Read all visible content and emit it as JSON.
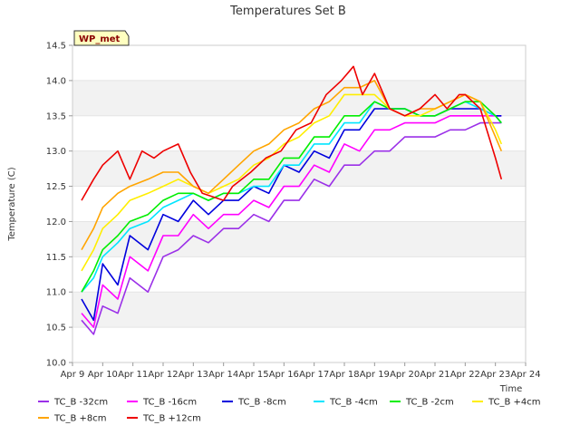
{
  "chart_data": {
    "type": "line",
    "title": "Temperatures Set B",
    "xlabel": "Time",
    "ylabel": "Temperature (C)",
    "badge": "WP_met",
    "xlim": [
      0,
      15
    ],
    "ylim": [
      10.0,
      14.5
    ],
    "x_ticks": [
      "Apr 9",
      "Apr 10",
      "Apr 11",
      "Apr 12",
      "Apr 13",
      "Apr 14",
      "Apr 15",
      "Apr 16",
      "Apr 17",
      "Apr 18",
      "Apr 19",
      "Apr 20",
      "Apr 21",
      "Apr 22",
      "Apr 23",
      "Apr 24"
    ],
    "y_ticks": [
      "10.0",
      "10.5",
      "11.0",
      "11.5",
      "12.0",
      "12.5",
      "13.0",
      "13.5",
      "14.0",
      "14.5"
    ],
    "y_tick_values": [
      10.0,
      10.5,
      11.0,
      11.5,
      12.0,
      12.5,
      13.0,
      13.5,
      14.0,
      14.5
    ],
    "grid": "horizontal bands",
    "band_color": "#f2f2f2",
    "legend_position": "bottom",
    "x_note": "x values are days after Apr 9",
    "series": [
      {
        "name": "TC_B -32cm",
        "color": "#9b30e8",
        "x": [
          0.3,
          0.7,
          1.0,
          1.5,
          1.9,
          2.5,
          3.0,
          3.5,
          4.0,
          4.5,
          5.0,
          5.5,
          6.0,
          6.5,
          7.0,
          7.5,
          8.0,
          8.5,
          9.0,
          9.5,
          10.0,
          10.5,
          11.0,
          11.5,
          12.0,
          12.5,
          13.0,
          13.5,
          14.0,
          14.2
        ],
        "y": [
          10.6,
          10.4,
          10.8,
          10.7,
          11.2,
          11.0,
          11.5,
          11.6,
          11.8,
          11.7,
          11.9,
          11.9,
          12.1,
          12.0,
          12.3,
          12.3,
          12.6,
          12.5,
          12.8,
          12.8,
          13.0,
          13.0,
          13.2,
          13.2,
          13.2,
          13.3,
          13.3,
          13.4,
          13.4,
          13.4
        ]
      },
      {
        "name": "TC_B -16cm",
        "color": "#ff00ff",
        "x": [
          0.3,
          0.7,
          1.0,
          1.5,
          1.9,
          2.5,
          3.0,
          3.5,
          4.0,
          4.5,
          5.0,
          5.5,
          6.0,
          6.5,
          7.0,
          7.5,
          8.0,
          8.5,
          9.0,
          9.5,
          10.0,
          10.5,
          11.0,
          11.5,
          12.0,
          12.5,
          13.0,
          13.5,
          14.0,
          14.2
        ],
        "y": [
          10.7,
          10.5,
          11.1,
          10.9,
          11.5,
          11.3,
          11.8,
          11.8,
          12.1,
          11.9,
          12.1,
          12.1,
          12.3,
          12.2,
          12.5,
          12.5,
          12.8,
          12.7,
          13.1,
          13.0,
          13.3,
          13.3,
          13.4,
          13.4,
          13.4,
          13.5,
          13.5,
          13.5,
          13.5,
          13.5
        ]
      },
      {
        "name": "TC_B -8cm",
        "color": "#0000dd",
        "x": [
          0.3,
          0.7,
          1.0,
          1.5,
          1.9,
          2.5,
          3.0,
          3.5,
          4.0,
          4.5,
          5.0,
          5.5,
          6.0,
          6.5,
          7.0,
          7.5,
          8.0,
          8.5,
          9.0,
          9.5,
          10.0,
          10.5,
          11.0,
          11.5,
          12.0,
          12.5,
          13.0,
          13.5,
          14.0,
          14.2
        ],
        "y": [
          10.9,
          10.6,
          11.4,
          11.1,
          11.8,
          11.6,
          12.1,
          12.0,
          12.3,
          12.1,
          12.3,
          12.3,
          12.5,
          12.4,
          12.8,
          12.7,
          13.0,
          12.9,
          13.3,
          13.3,
          13.6,
          13.6,
          13.6,
          13.5,
          13.5,
          13.6,
          13.6,
          13.6,
          13.5,
          13.5
        ]
      },
      {
        "name": "TC_B -4cm",
        "color": "#00e5ff",
        "x": [
          0.3,
          0.7,
          1.0,
          1.5,
          1.9,
          2.5,
          3.0,
          3.5,
          4.0,
          4.5,
          5.0,
          5.5,
          6.0,
          6.5,
          7.0,
          7.5,
          8.0,
          8.5,
          9.0,
          9.5,
          10.0,
          10.5,
          11.0,
          11.5,
          12.0,
          12.5,
          13.0,
          13.5,
          14.0,
          14.2
        ],
        "y": [
          11.0,
          11.2,
          11.5,
          11.7,
          11.9,
          12.0,
          12.2,
          12.3,
          12.4,
          12.3,
          12.4,
          12.4,
          12.5,
          12.5,
          12.8,
          12.8,
          13.1,
          13.1,
          13.4,
          13.4,
          13.7,
          13.6,
          13.6,
          13.5,
          13.5,
          13.6,
          13.7,
          13.6,
          13.5,
          13.4
        ]
      },
      {
        "name": "TC_B -2cm",
        "color": "#00ee00",
        "x": [
          0.3,
          0.7,
          1.0,
          1.5,
          1.9,
          2.5,
          3.0,
          3.5,
          4.0,
          4.5,
          5.0,
          5.5,
          6.0,
          6.5,
          7.0,
          7.5,
          8.0,
          8.5,
          9.0,
          9.5,
          10.0,
          10.5,
          11.0,
          11.5,
          12.0,
          12.5,
          13.0,
          13.5,
          14.0,
          14.2
        ],
        "y": [
          11.0,
          11.3,
          11.6,
          11.8,
          12.0,
          12.1,
          12.3,
          12.4,
          12.4,
          12.3,
          12.4,
          12.4,
          12.6,
          12.6,
          12.9,
          12.9,
          13.2,
          13.2,
          13.5,
          13.5,
          13.7,
          13.6,
          13.6,
          13.5,
          13.5,
          13.6,
          13.7,
          13.7,
          13.5,
          13.4
        ]
      },
      {
        "name": "TC_B +4cm",
        "color": "#ffee00",
        "x": [
          0.3,
          0.7,
          1.0,
          1.5,
          1.9,
          2.5,
          3.0,
          3.5,
          4.0,
          4.5,
          5.0,
          5.5,
          6.0,
          6.5,
          7.0,
          7.5,
          8.0,
          8.5,
          9.0,
          9.5,
          10.0,
          10.5,
          11.0,
          11.5,
          12.0,
          12.5,
          13.0,
          13.5,
          14.0,
          14.2
        ],
        "y": [
          11.3,
          11.6,
          11.9,
          12.1,
          12.3,
          12.4,
          12.5,
          12.6,
          12.5,
          12.4,
          12.5,
          12.6,
          12.8,
          12.9,
          13.1,
          13.2,
          13.4,
          13.5,
          13.8,
          13.8,
          13.8,
          13.6,
          13.5,
          13.5,
          13.6,
          13.7,
          13.8,
          13.7,
          13.3,
          13.1
        ]
      },
      {
        "name": "TC_B +8cm",
        "color": "#ffa500",
        "x": [
          0.3,
          0.7,
          1.0,
          1.5,
          1.9,
          2.5,
          3.0,
          3.5,
          4.0,
          4.5,
          5.0,
          5.5,
          6.0,
          6.5,
          7.0,
          7.5,
          8.0,
          8.5,
          9.0,
          9.5,
          10.0,
          10.5,
          11.0,
          11.5,
          12.0,
          12.5,
          13.0,
          13.5,
          14.0,
          14.2
        ],
        "y": [
          11.6,
          11.9,
          12.2,
          12.4,
          12.5,
          12.6,
          12.7,
          12.7,
          12.5,
          12.4,
          12.6,
          12.8,
          13.0,
          13.1,
          13.3,
          13.4,
          13.6,
          13.7,
          13.9,
          13.9,
          14.0,
          13.6,
          13.5,
          13.6,
          13.6,
          13.7,
          13.8,
          13.7,
          13.2,
          13.0
        ]
      },
      {
        "name": "TC_B +12cm",
        "color": "#ee0000",
        "x": [
          0.3,
          0.7,
          1.0,
          1.5,
          1.9,
          2.3,
          2.7,
          3.0,
          3.5,
          3.9,
          4.3,
          5.0,
          5.3,
          5.9,
          6.4,
          6.9,
          7.4,
          7.9,
          8.4,
          8.9,
          9.3,
          9.6,
          10.0,
          10.5,
          11.0,
          11.5,
          12.0,
          12.4,
          12.8,
          13.0,
          13.5,
          14.0,
          14.2
        ],
        "y": [
          12.3,
          12.6,
          12.8,
          13.0,
          12.6,
          13.0,
          12.9,
          13.0,
          13.1,
          12.7,
          12.4,
          12.3,
          12.5,
          12.7,
          12.9,
          13.0,
          13.3,
          13.4,
          13.8,
          14.0,
          14.2,
          13.8,
          14.1,
          13.6,
          13.5,
          13.6,
          13.8,
          13.6,
          13.8,
          13.8,
          13.6,
          12.9,
          12.6
        ]
      }
    ]
  }
}
